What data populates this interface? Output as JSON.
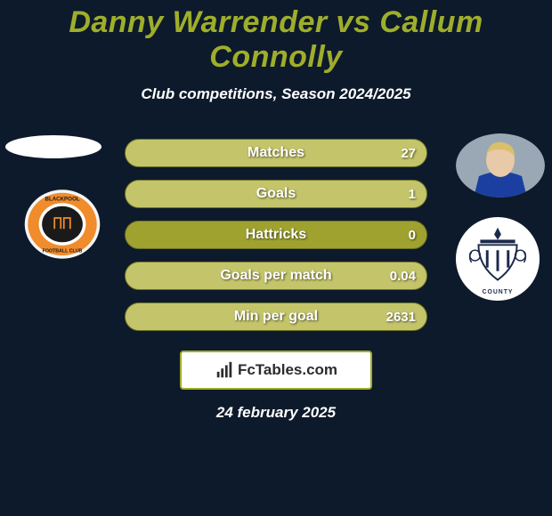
{
  "colors": {
    "background": "#0d1a2b",
    "title": "#9fae2a",
    "subtitle": "#ffffff",
    "bar_bg": "#9fa22f",
    "bar_left_fill": "#7d8229",
    "bar_right_fill": "#c4c46a",
    "bar_border": "#6f7226",
    "avatar_left": "#ffffff",
    "club_left_bg": "#f08c2c",
    "club_left_border": "#e0e0e0",
    "club_right_bg": "#ffffff",
    "logo_border": "#9fae2a",
    "logo_bg": "#ffffff",
    "logo_text": "#2c2c2c",
    "date": "#ffffff"
  },
  "title": "Danny Warrender vs Callum Connolly",
  "subtitle": "Club competitions, Season 2024/2025",
  "date": "24 february 2025",
  "logo_text_1": "Fc",
  "logo_text_2": "Tables.com",
  "bars": [
    {
      "label": "Matches",
      "left": "",
      "right": "27",
      "left_pct": 0,
      "right_pct": 100
    },
    {
      "label": "Goals",
      "left": "",
      "right": "1",
      "left_pct": 0,
      "right_pct": 100
    },
    {
      "label": "Hattricks",
      "left": "",
      "right": "0",
      "left_pct": 0,
      "right_pct": 0
    },
    {
      "label": "Goals per match",
      "left": "",
      "right": "0.04",
      "left_pct": 0,
      "right_pct": 100
    },
    {
      "label": "Min per goal",
      "left": "",
      "right": "2631",
      "left_pct": 0,
      "right_pct": 100
    }
  ],
  "fontsize": {
    "title": 34,
    "subtitle": 17,
    "bar_label": 16,
    "bar_value": 15,
    "date": 17
  }
}
